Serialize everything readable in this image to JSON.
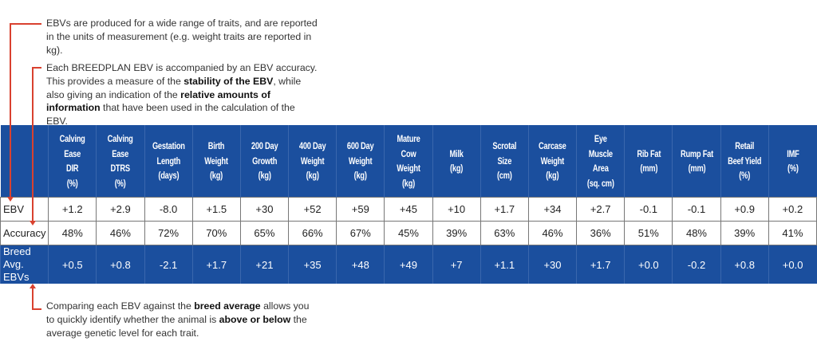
{
  "notes": {
    "units": [
      {
        "text": "EBVs are produced for a wide range of traits, and are reported in the units of measurement (e.g. weight traits are reported in kg).",
        "bold": false
      }
    ],
    "accuracy": [
      {
        "text": "Each BREEDPLAN EBV is accompanied by an EBV accuracy. This provides a measure of the ",
        "bold": false
      },
      {
        "text": "stability of the EBV",
        "bold": true
      },
      {
        "text": ", while also giving an indication of the ",
        "bold": false
      },
      {
        "text": "relative amounts of information",
        "bold": true
      },
      {
        "text": " that have been used in the calculation of the EBV.",
        "bold": false
      }
    ],
    "breed": [
      {
        "text": "Comparing each EBV against the ",
        "bold": false
      },
      {
        "text": "breed average",
        "bold": true
      },
      {
        "text": " allows you to quickly identify whether the animal is ",
        "bold": false
      },
      {
        "text": "above or below",
        "bold": true
      },
      {
        "text": " the average genetic level for each trait.",
        "bold": false
      }
    ]
  },
  "table": {
    "columns": [
      "Calving Ease DIR (%)",
      "Calving Ease DTRS (%)",
      "Gestation Length (days)",
      "Birth Weight (kg)",
      "200 Day Growth (kg)",
      "400 Day Weight (kg)",
      "600 Day Weight (kg)",
      "Mature Cow Weight (kg)",
      "Milk (kg)",
      "Scrotal Size (cm)",
      "Carcase Weight (kg)",
      "Eye Muscle Area (sq. cm)",
      "Rib Fat (mm)",
      "Rump Fat (mm)",
      "Retail Beef Yield (%)",
      "IMF (%)"
    ],
    "column_lines": [
      [
        "Calving",
        "Ease",
        "DIR",
        "(%)"
      ],
      [
        "Calving",
        "Ease",
        "DTRS",
        "(%)"
      ],
      [
        "Gestation",
        "Length",
        "(days)"
      ],
      [
        "Birth",
        "Weight",
        "(kg)"
      ],
      [
        "200 Day",
        "Growth",
        "(kg)"
      ],
      [
        "400 Day",
        "Weight",
        "(kg)"
      ],
      [
        "600 Day",
        "Weight",
        "(kg)"
      ],
      [
        "Mature",
        "Cow",
        "Weight",
        "(kg)"
      ],
      [
        "Milk",
        "(kg)"
      ],
      [
        "Scrotal",
        "Size",
        "(cm)"
      ],
      [
        "Carcase",
        "Weight",
        "(kg)"
      ],
      [
        "Eye",
        "Muscle",
        "Area",
        "(sq. cm)"
      ],
      [
        "Rib Fat",
        "(mm)"
      ],
      [
        "Rump Fat",
        "(mm)"
      ],
      [
        "Retail",
        "Beef Yield",
        "(%)"
      ],
      [
        "IMF",
        "(%)"
      ]
    ],
    "rows": [
      {
        "label": "EBV",
        "values": [
          "+1.2",
          "+2.9",
          "-8.0",
          "+1.5",
          "+30",
          "+52",
          "+59",
          "+45",
          "+10",
          "+1.7",
          "+34",
          "+2.7",
          "-0.1",
          "-0.1",
          "+0.9",
          "+0.2"
        ]
      },
      {
        "label": "Accuracy",
        "values": [
          "48%",
          "46%",
          "72%",
          "70%",
          "65%",
          "66%",
          "67%",
          "45%",
          "39%",
          "63%",
          "46%",
          "36%",
          "51%",
          "48%",
          "39%",
          "41%"
        ]
      },
      {
        "label": "Breed Avg. EBVs",
        "values": [
          "+0.5",
          "+0.8",
          "-2.1",
          "+1.7",
          "+21",
          "+35",
          "+48",
          "+49",
          "+7",
          "+1.1",
          "+30",
          "+1.7",
          "+0.0",
          "-0.2",
          "+0.8",
          "+0.0"
        ]
      }
    ]
  },
  "colors": {
    "header_blue": "#1b4f9e",
    "annotation_red": "#d9412f"
  }
}
